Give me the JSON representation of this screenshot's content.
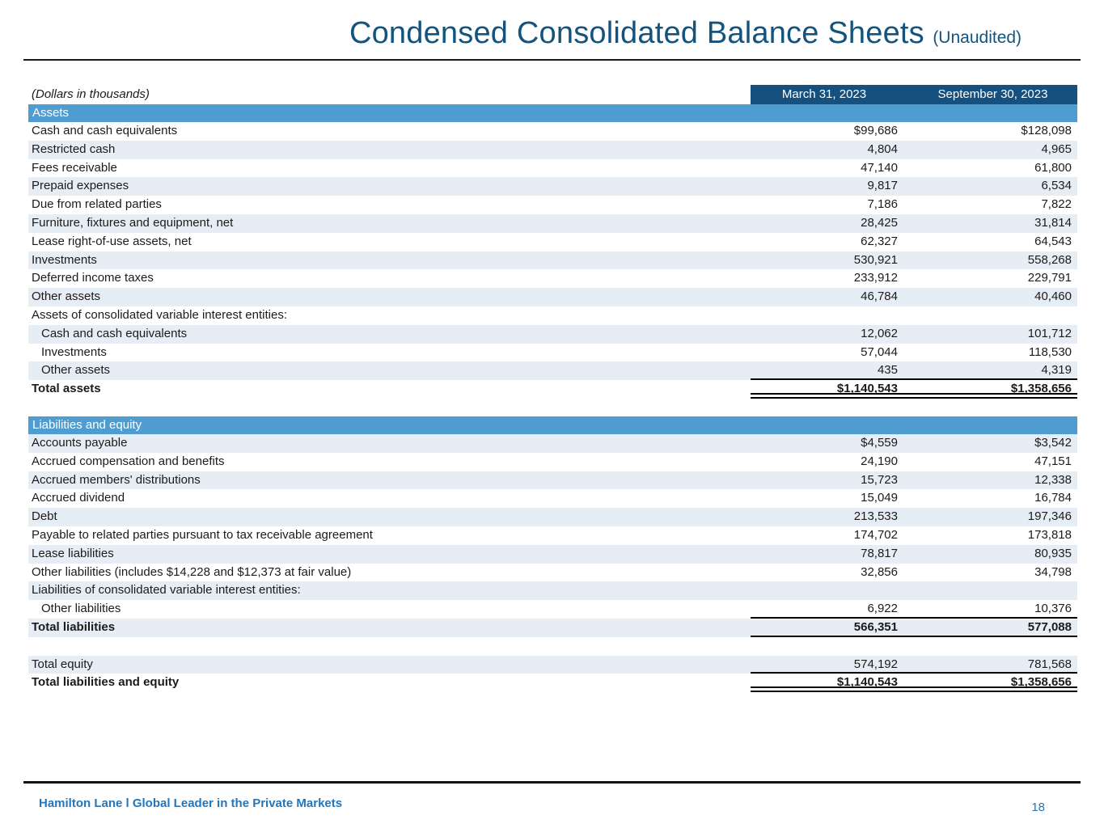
{
  "title": {
    "main": "Condensed Consolidated Balance Sheets",
    "suffix": "(Unaudited)"
  },
  "table": {
    "units_note": "(Dollars in thousands)",
    "columns": [
      "March 31, 2023",
      "September 30, 2023"
    ],
    "sections": [
      {
        "header": "Assets",
        "rows": [
          {
            "label": "Cash and cash equivalents",
            "v1": "$99,686",
            "v2": "$128,098",
            "shade": "white"
          },
          {
            "label": "Restricted cash",
            "v1": "4,804",
            "v2": "4,965",
            "shade": "blue"
          },
          {
            "label": "Fees receivable",
            "v1": "47,140",
            "v2": "61,800",
            "shade": "white"
          },
          {
            "label": "Prepaid expenses",
            "v1": "9,817",
            "v2": "6,534",
            "shade": "blue"
          },
          {
            "label": "Due from related parties",
            "v1": "7,186",
            "v2": "7,822",
            "shade": "white"
          },
          {
            "label": "Furniture, fixtures and equipment, net",
            "v1": "28,425",
            "v2": "31,814",
            "shade": "blue"
          },
          {
            "label": "Lease right-of-use assets, net",
            "v1": "62,327",
            "v2": "64,543",
            "shade": "white"
          },
          {
            "label": "Investments",
            "v1": "530,921",
            "v2": "558,268",
            "shade": "blue"
          },
          {
            "label": "Deferred income taxes",
            "v1": "233,912",
            "v2": "229,791",
            "shade": "white"
          },
          {
            "label": "Other assets",
            "v1": "46,784",
            "v2": "40,460",
            "shade": "blue"
          },
          {
            "label": "Assets of consolidated variable interest entities:",
            "v1": "",
            "v2": "",
            "shade": "white"
          },
          {
            "label": "Cash and cash equivalents",
            "v1": "12,062",
            "v2": "101,712",
            "shade": "blue",
            "indent": true
          },
          {
            "label": "Investments",
            "v1": "57,044",
            "v2": "118,530",
            "shade": "white",
            "indent": true
          },
          {
            "label": "Other assets",
            "v1": "435",
            "v2": "4,319",
            "shade": "blue",
            "indent": true,
            "line": "bline"
          },
          {
            "label": "Total assets",
            "v1": "$1,140,543",
            "v2": "$1,358,656",
            "shade": "white",
            "bold": true,
            "line": "dline"
          }
        ]
      },
      {
        "header": "Liabilities and equity",
        "rows": [
          {
            "label": "Accounts payable",
            "v1": "$4,559",
            "v2": "$3,542",
            "shade": "blue"
          },
          {
            "label": "Accrued compensation and benefits",
            "v1": "24,190",
            "v2": "47,151",
            "shade": "white"
          },
          {
            "label": "Accrued members' distributions",
            "v1": "15,723",
            "v2": "12,338",
            "shade": "blue"
          },
          {
            "label": "Accrued dividend",
            "v1": "15,049",
            "v2": "16,784",
            "shade": "white"
          },
          {
            "label": "Debt",
            "v1": "213,533",
            "v2": "197,346",
            "shade": "blue"
          },
          {
            "label": "Payable to related parties pursuant to tax receivable agreement",
            "v1": "174,702",
            "v2": "173,818",
            "shade": "white"
          },
          {
            "label": "Lease liabilities",
            "v1": "78,817",
            "v2": "80,935",
            "shade": "blue"
          },
          {
            "label": "Other liabilities (includes $14,228 and $12,373 at fair value)",
            "v1": "32,856",
            "v2": "34,798",
            "shade": "white"
          },
          {
            "label": "Liabilities of consolidated variable interest entities:",
            "v1": "",
            "v2": "",
            "shade": "blue"
          },
          {
            "label": "Other liabilities",
            "v1": "6,922",
            "v2": "10,376",
            "shade": "white",
            "indent": true,
            "line": "bline"
          },
          {
            "label": "Total liabilities",
            "v1": "566,351",
            "v2": "577,088",
            "shade": "blue",
            "bold": true,
            "line": "bline"
          },
          {
            "label": "",
            "v1": "",
            "v2": "",
            "shade": "white",
            "spacer": true
          },
          {
            "label": "Total equity",
            "v1": "574,192",
            "v2": "781,568",
            "shade": "blue",
            "line": "bline"
          },
          {
            "label": "Total liabilities and equity",
            "v1": "$1,140,543",
            "v2": "$1,358,656",
            "shade": "white",
            "bold": true,
            "line": "dline"
          }
        ]
      }
    ]
  },
  "footer": {
    "brand": "Hamilton Lane l Global Leader in the Private Markets",
    "page": "18"
  },
  "colors": {
    "title_blue": "#14537e",
    "header_bar_blue": "#15507e",
    "section_band_blue": "#4f9cd1",
    "row_shade_blue": "#e7edf4",
    "footer_blue": "#2176bd"
  }
}
